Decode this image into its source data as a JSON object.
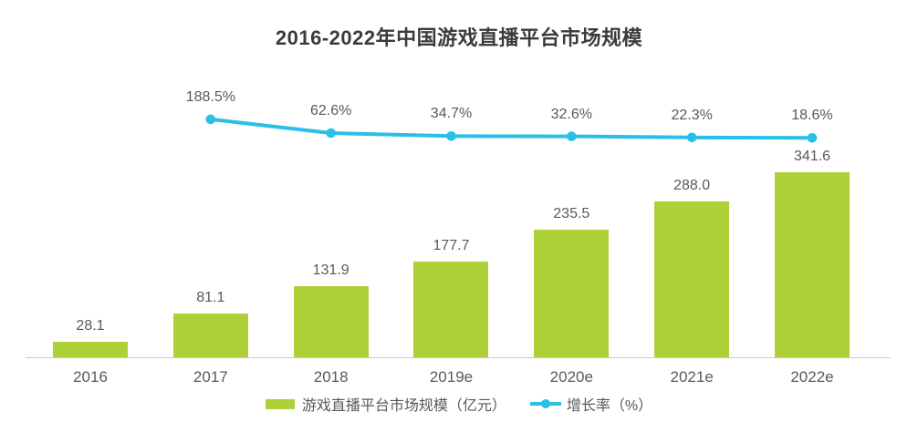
{
  "chart_data": {
    "type": "bar+line",
    "title": "2016-2022年中国游戏直播平台市场规模",
    "categories": [
      "2016",
      "2017",
      "2018",
      "2019e",
      "2020e",
      "2021e",
      "2022e"
    ],
    "series": [
      {
        "name": "游戏直播平台市场规模（亿元）",
        "type": "bar",
        "values": [
          28.1,
          81.1,
          131.9,
          177.7,
          235.5,
          288.0,
          341.6
        ],
        "color": "#aed038",
        "label_decimals": 1
      },
      {
        "name": "增长率（%）",
        "type": "line",
        "values": [
          null,
          188.5,
          62.6,
          34.7,
          32.6,
          22.3,
          18.6
        ],
        "color": "#2abfe8",
        "label_suffix": "%",
        "label_decimals": 1
      }
    ],
    "legend_position": "bottom",
    "grid": false,
    "value_labels": true
  },
  "legend": {
    "bar_label": "游戏直播平台市场规模（亿元）",
    "line_label": "增长率（%）"
  },
  "colors": {
    "bar": "#aed038",
    "line": "#2abfe8",
    "title_text": "#3b3b3b",
    "label_text": "#595959",
    "axis_line": "#c8c8c8",
    "background": "#ffffff"
  }
}
